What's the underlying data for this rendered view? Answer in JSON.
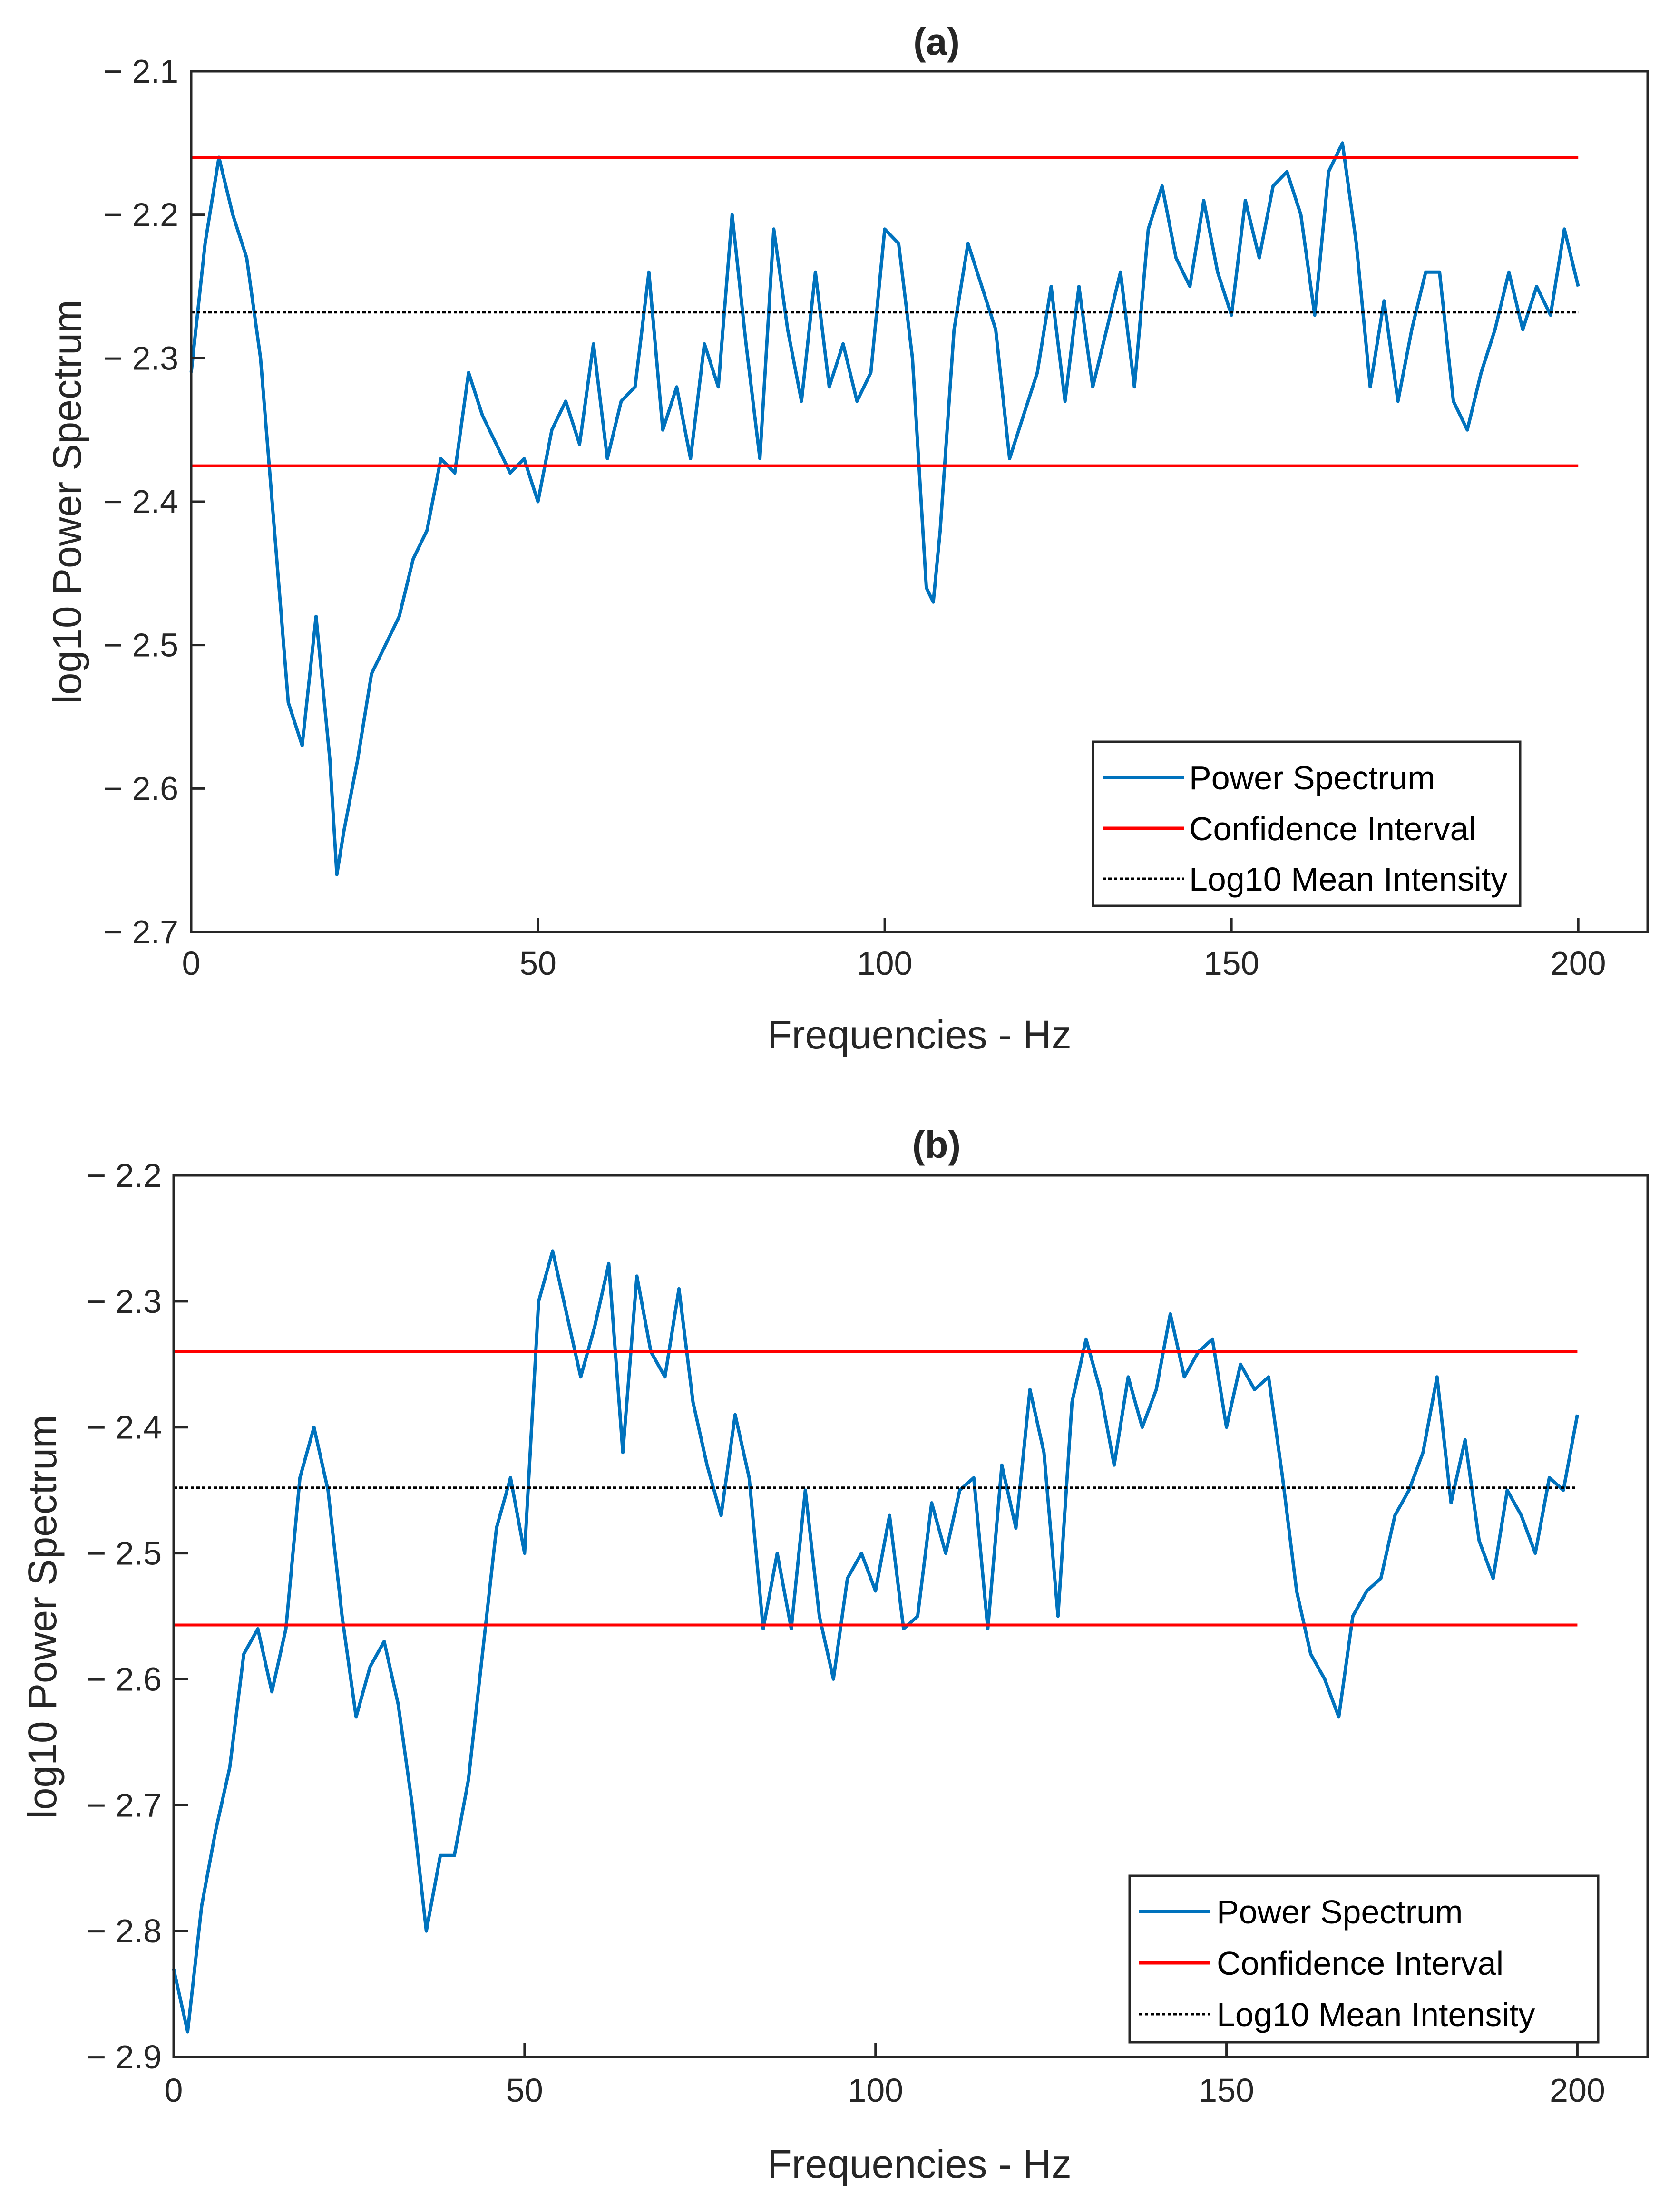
{
  "figure": {
    "background": "#ffffff"
  },
  "chart_data": [
    {
      "type": "line",
      "panel": "a",
      "title": "(a)",
      "xlabel": "Frequencies - Hz",
      "ylabel": "log10 Power Spectrum",
      "xlim": [
        0,
        210
      ],
      "ylim": [
        -2.7,
        -2.1
      ],
      "xticks": [
        0,
        50,
        100,
        150,
        200
      ],
      "xtick_labels": [
        "0",
        "50",
        "100",
        "150",
        "200"
      ],
      "yticks": [
        -2.1,
        -2.2,
        -2.3,
        -2.4,
        -2.5,
        -2.6,
        -2.7
      ],
      "ytick_labels": [
        "− 2.1",
        "− 2.2",
        "− 2.3",
        "− 2.4",
        "− 2.5",
        "− 2.6",
        "− 2.7"
      ],
      "grid": false,
      "legend_position": "bottom-right",
      "series": [
        {
          "name": "Power Spectrum",
          "color": "#0072BD",
          "x": [
            0,
            2,
            4,
            6,
            8,
            10,
            12,
            14,
            16,
            18,
            20,
            21,
            22,
            24,
            26,
            28,
            30,
            32,
            34,
            36,
            38,
            40,
            42,
            44,
            46,
            48,
            50,
            52,
            54,
            56,
            58,
            60,
            62,
            64,
            66,
            68,
            70,
            72,
            74,
            76,
            78,
            80,
            82,
            84,
            86,
            88,
            90,
            92,
            94,
            96,
            98,
            100,
            102,
            104,
            106,
            107,
            108,
            110,
            112,
            114,
            116,
            118,
            120,
            122,
            124,
            126,
            128,
            130,
            132,
            134,
            136,
            138,
            140,
            142,
            144,
            146,
            148,
            150,
            152,
            154,
            156,
            158,
            160,
            162,
            164,
            166,
            168,
            170,
            172,
            174,
            176,
            178,
            180,
            182,
            184,
            186,
            188,
            190,
            192,
            194,
            196,
            198,
            200
          ],
          "values": [
            -2.31,
            -2.22,
            -2.16,
            -2.2,
            -2.23,
            -2.3,
            -2.42,
            -2.54,
            -2.57,
            -2.48,
            -2.58,
            -2.66,
            -2.63,
            -2.58,
            -2.52,
            -2.5,
            -2.48,
            -2.44,
            -2.42,
            -2.37,
            -2.38,
            -2.31,
            -2.34,
            -2.36,
            -2.38,
            -2.37,
            -2.4,
            -2.35,
            -2.33,
            -2.36,
            -2.29,
            -2.37,
            -2.33,
            -2.32,
            -2.24,
            -2.35,
            -2.32,
            -2.37,
            -2.29,
            -2.32,
            -2.2,
            -2.29,
            -2.37,
            -2.21,
            -2.28,
            -2.33,
            -2.24,
            -2.32,
            -2.29,
            -2.33,
            -2.31,
            -2.21,
            -2.22,
            -2.3,
            -2.46,
            -2.47,
            -2.42,
            -2.28,
            -2.22,
            -2.25,
            -2.28,
            -2.37,
            -2.34,
            -2.31,
            -2.25,
            -2.33,
            -2.25,
            -2.32,
            -2.28,
            -2.24,
            -2.32,
            -2.21,
            -2.18,
            -2.23,
            -2.25,
            -2.19,
            -2.24,
            -2.27,
            -2.19,
            -2.23,
            -2.18,
            -2.17,
            -2.2,
            -2.27,
            -2.17,
            -2.15,
            -2.22,
            -2.32,
            -2.26,
            -2.33,
            -2.28,
            -2.24,
            -2.24,
            -2.33,
            -2.35,
            -2.31,
            -2.28,
            -2.24,
            -2.28,
            -2.25,
            -2.27,
            -2.21,
            -2.25
          ]
        },
        {
          "name": "Confidence Interval",
          "color": "#ff0000",
          "x": [
            0,
            200
          ],
          "values": [
            -2.16,
            -2.16
          ]
        },
        {
          "name": "Confidence Interval (lower)",
          "color": "#ff0000",
          "x": [
            0,
            200
          ],
          "values": [
            -2.375,
            -2.375
          ]
        },
        {
          "name": "Log10 Mean Intensity",
          "color": "#000000",
          "x": [
            0,
            200
          ],
          "values": [
            -2.268,
            -2.268
          ]
        }
      ],
      "legend": [
        "Power Spectrum",
        "Confidence Interval",
        "Log10 Mean Intensity"
      ]
    },
    {
      "type": "line",
      "panel": "b",
      "title": "(b)",
      "xlabel": "Frequencies - Hz",
      "ylabel": "log10 Power Spectrum",
      "xlim": [
        0,
        210
      ],
      "ylim": [
        -2.9,
        -2.2
      ],
      "xticks": [
        0,
        50,
        100,
        150,
        200
      ],
      "xtick_labels": [
        "0",
        "50",
        "100",
        "150",
        "200"
      ],
      "yticks": [
        -2.2,
        -2.3,
        -2.4,
        -2.5,
        -2.6,
        -2.7,
        -2.8,
        -2.9
      ],
      "ytick_labels": [
        "− 2.2",
        "− 2.3",
        "− 2.4",
        "− 2.5",
        "− 2.6",
        "− 2.7",
        "− 2.8",
        "− 2.9"
      ],
      "grid": false,
      "legend_position": "bottom-right",
      "series": [
        {
          "name": "Power Spectrum",
          "color": "#0072BD",
          "x": [
            0,
            2,
            4,
            6,
            8,
            10,
            12,
            14,
            16,
            18,
            20,
            22,
            24,
            26,
            28,
            30,
            32,
            34,
            36,
            38,
            40,
            42,
            44,
            46,
            48,
            50,
            52,
            54,
            56,
            58,
            60,
            62,
            64,
            66,
            68,
            70,
            72,
            74,
            76,
            78,
            80,
            82,
            84,
            86,
            88,
            90,
            92,
            94,
            96,
            98,
            100,
            102,
            104,
            106,
            108,
            110,
            112,
            114,
            116,
            118,
            120,
            122,
            124,
            126,
            128,
            130,
            132,
            134,
            136,
            138,
            140,
            142,
            144,
            146,
            148,
            150,
            152,
            154,
            156,
            158,
            160,
            162,
            164,
            166,
            168,
            170,
            172,
            174,
            176,
            178,
            180,
            182,
            184,
            186,
            188,
            190,
            192,
            194,
            196,
            198,
            200
          ],
          "values": [
            -2.83,
            -2.88,
            -2.78,
            -2.72,
            -2.67,
            -2.58,
            -2.56,
            -2.61,
            -2.56,
            -2.44,
            -2.4,
            -2.45,
            -2.55,
            -2.63,
            -2.59,
            -2.57,
            -2.62,
            -2.7,
            -2.8,
            -2.74,
            -2.74,
            -2.68,
            -2.58,
            -2.48,
            -2.44,
            -2.5,
            -2.3,
            -2.26,
            -2.31,
            -2.36,
            -2.32,
            -2.27,
            -2.42,
            -2.28,
            -2.34,
            -2.36,
            -2.29,
            -2.38,
            -2.43,
            -2.47,
            -2.39,
            -2.44,
            -2.56,
            -2.5,
            -2.56,
            -2.45,
            -2.55,
            -2.6,
            -2.52,
            -2.5,
            -2.53,
            -2.47,
            -2.56,
            -2.55,
            -2.46,
            -2.5,
            -2.45,
            -2.44,
            -2.56,
            -2.43,
            -2.48,
            -2.37,
            -2.42,
            -2.55,
            -2.38,
            -2.33,
            -2.37,
            -2.43,
            -2.36,
            -2.4,
            -2.37,
            -2.31,
            -2.36,
            -2.34,
            -2.33,
            -2.4,
            -2.35,
            -2.37,
            -2.36,
            -2.44,
            -2.53,
            -2.58,
            -2.6,
            -2.63,
            -2.55,
            -2.53,
            -2.52,
            -2.47,
            -2.45,
            -2.42,
            -2.36,
            -2.46,
            -2.41,
            -2.49,
            -2.52,
            -2.45,
            -2.47,
            -2.5,
            -2.44,
            -2.45,
            -2.39
          ]
        },
        {
          "name": "Confidence Interval",
          "color": "#ff0000",
          "x": [
            0,
            200
          ],
          "values": [
            -2.34,
            -2.34
          ]
        },
        {
          "name": "Confidence Interval (lower)",
          "color": "#ff0000",
          "x": [
            0,
            200
          ],
          "values": [
            -2.557,
            -2.557
          ]
        },
        {
          "name": "Log10 Mean Intensity",
          "color": "#000000",
          "x": [
            0,
            200
          ],
          "values": [
            -2.448,
            -2.448
          ]
        }
      ],
      "legend": [
        "Power Spectrum",
        "Confidence Interval",
        "Log10 Mean Intensity"
      ]
    }
  ]
}
